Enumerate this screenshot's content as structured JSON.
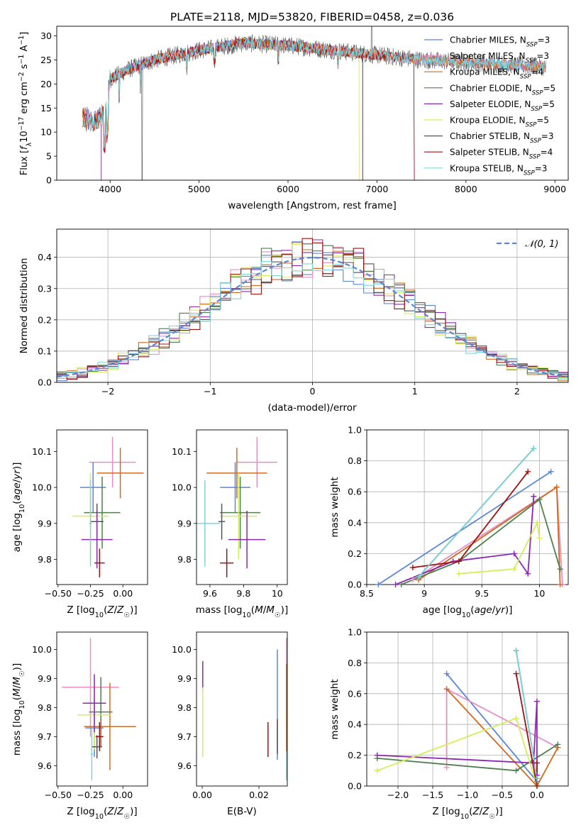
{
  "colors": {
    "Chabrier MILES": "#5b86d6",
    "Salpeter MILES": "#e68fc4",
    "Kroupa MILES": "#d2691e",
    "Chabrier ELODIE": "#4f7f4f",
    "Salpeter ELODIE": "#8b28b0",
    "Kroupa ELODIE": "#d4ee5a",
    "Chabrier STELIB": "#555555",
    "Salpeter STELIB": "#a01010",
    "Kroupa STELIB": "#7bd6da",
    "gaussian": "#5b86d6"
  },
  "chart_data": [
    {
      "id": "spectrum",
      "type": "line",
      "title": "PLATE=2118, MJD=53820, FIBERID=0458, z=0.036",
      "xlabel": "wavelength [Angstrom, rest frame]",
      "ylabel": "Flux [f_λ10^-17 erg cm^-2 s^-1 A^-1]",
      "xlim": [
        3400,
        9150
      ],
      "ylim": [
        0,
        32
      ],
      "xticks": [
        4000,
        5000,
        6000,
        7000,
        8000,
        9000
      ],
      "yticks": [
        0,
        5,
        10,
        15,
        20,
        25,
        30
      ],
      "legend_position": "top-right",
      "legend": [
        {
          "model": "Chabrier MILES",
          "n": 3
        },
        {
          "model": "Salpeter MILES",
          "n": 3
        },
        {
          "model": "Kroupa MILES",
          "n": 4
        },
        {
          "model": "Chabrier ELODIE",
          "n": 5
        },
        {
          "model": "Salpeter ELODIE",
          "n": 5
        },
        {
          "model": "Kroupa ELODIE",
          "n": 5
        },
        {
          "model": "Chabrier STELIB",
          "n": 3
        },
        {
          "model": "Salpeter STELIB",
          "n": 4
        },
        {
          "model": "Kroupa STELIB",
          "n": 3
        }
      ],
      "continuum": {
        "x": [
          3690,
          3800,
          3950,
          4000,
          4200,
          4500,
          5000,
          5500,
          6000,
          6500,
          7000,
          7500,
          8000,
          8500,
          8900
        ],
        "y": [
          13,
          12,
          14,
          21,
          23,
          25,
          27,
          28.5,
          28,
          27,
          26,
          25,
          24.5,
          24,
          23.5
        ]
      },
      "features": {
        "sharp_drop_x": 4360,
        "kroupa_elodie_end_x": 6800,
        "salpeter_stelib_end_x": 7420,
        "elodie_start_x": 3900,
        "spike_x": 6940,
        "model_end_x": 8900
      }
    },
    {
      "id": "residuals",
      "type": "histogram",
      "xlabel": "(data-model)/error",
      "ylabel": "Normed distribution",
      "xlim": [
        -2.5,
        2.5
      ],
      "ylim": [
        0,
        0.49
      ],
      "xticks": [
        -2,
        -1,
        0,
        1,
        2
      ],
      "yticks": [
        0.0,
        0.1,
        0.2,
        0.3,
        0.4
      ],
      "bin_width": 0.1,
      "legend": "𝒩(0, 1)",
      "legend_position": "top-right"
    },
    {
      "id": "age_vs_Z",
      "type": "errorbar",
      "xlabel": "Z [log10(Z/Z☉)]",
      "ylabel": "age  [log10(age/yr)]",
      "xlim": [
        -0.51,
        0.19
      ],
      "ylim": [
        9.73,
        10.16
      ],
      "xticks": [
        -0.5,
        -0.25,
        0.0
      ],
      "xticklabels": [
        "−0.50",
        "−0.25",
        "0.00"
      ],
      "yticks": [
        9.8,
        9.9,
        10.0,
        10.1
      ],
      "points": [
        {
          "model": "Salpeter MILES",
          "x": -0.08,
          "xerr": 0.18,
          "y": 10.07,
          "yerr": 0.07
        },
        {
          "model": "Kroupa MILES",
          "x": -0.02,
          "xerr": 0.18,
          "y": 10.04,
          "yerr": 0.07
        },
        {
          "model": "Chabrier MILES",
          "x": -0.23,
          "xerr": 0.1,
          "y": 10.0,
          "yerr": 0.07
        },
        {
          "model": "Chabrier ELODIE",
          "x": -0.16,
          "xerr": 0.14,
          "y": 9.93,
          "yerr": 0.1
        },
        {
          "model": "Kroupa ELODIE",
          "x": -0.25,
          "xerr": 0.14,
          "y": 9.92,
          "yerr": 0.12
        },
        {
          "model": "Chabrier STELIB",
          "x": -0.2,
          "xerr": 0.05,
          "y": 9.905,
          "yerr": 0.05
        },
        {
          "model": "Salpeter ELODIE",
          "x": -0.2,
          "xerr": 0.12,
          "y": 9.855,
          "yerr": 0.08
        },
        {
          "model": "Salpeter STELIB",
          "x": -0.18,
          "xerr": 0.04,
          "y": 9.79,
          "yerr": 0.04
        },
        {
          "model": "Kroupa STELIB",
          "x": -0.25,
          "xerr": 0.01,
          "y": 9.9,
          "yerr": 0.12
        }
      ]
    },
    {
      "id": "age_vs_mass",
      "type": "errorbar",
      "xlabel": "mass [log10(M/M☉)]",
      "xlim": [
        9.52,
        10.06
      ],
      "ylim": [
        9.73,
        10.16
      ],
      "xticks": [
        9.6,
        9.8,
        10.0
      ],
      "yticks": [
        9.8,
        9.9,
        10.0,
        10.1
      ],
      "points": [
        {
          "model": "Salpeter MILES",
          "x": 9.88,
          "xerr": 0.12,
          "y": 10.07,
          "yerr": 0.07
        },
        {
          "model": "Kroupa MILES",
          "x": 9.76,
          "xerr": 0.18,
          "y": 10.04,
          "yerr": 0.07
        },
        {
          "model": "Chabrier MILES",
          "x": 9.75,
          "xerr": 0.09,
          "y": 10.0,
          "yerr": 0.07
        },
        {
          "model": "Chabrier ELODIE",
          "x": 9.78,
          "xerr": 0.12,
          "y": 9.93,
          "yerr": 0.1
        },
        {
          "model": "Kroupa ELODIE",
          "x": 9.77,
          "xerr": 0.11,
          "y": 9.92,
          "yerr": 0.12
        },
        {
          "model": "Chabrier STELIB",
          "x": 9.67,
          "xerr": 0.02,
          "y": 9.905,
          "yerr": 0.05
        },
        {
          "model": "Salpeter ELODIE",
          "x": 9.82,
          "xerr": 0.11,
          "y": 9.855,
          "yerr": 0.08
        },
        {
          "model": "Salpeter STELIB",
          "x": 9.7,
          "xerr": 0.04,
          "y": 9.79,
          "yerr": 0.04
        },
        {
          "model": "Kroupa STELIB",
          "x": 9.57,
          "xerr": 0.09,
          "y": 9.9,
          "yerr": 0.12
        }
      ]
    },
    {
      "id": "mass_vs_Z",
      "type": "errorbar",
      "xlabel": "Z [log10(Z/Z☉)]",
      "ylabel": "mass [log10(M/M☉)]",
      "xlim": [
        -0.51,
        0.19
      ],
      "ylim": [
        9.53,
        10.06
      ],
      "xticks": [
        -0.5,
        -0.25,
        0.0
      ],
      "xticklabels": [
        "−0.50",
        "−0.25",
        "0.00"
      ],
      "yticks": [
        9.6,
        9.7,
        9.8,
        9.9,
        10.0
      ],
      "points": [
        {
          "model": "Salpeter MILES",
          "x": -0.25,
          "xerr": 0.22,
          "y": 9.87,
          "yerr": 0.17
        },
        {
          "model": "Kroupa MILES",
          "x": -0.1,
          "xerr": 0.2,
          "y": 9.735,
          "yerr": 0.15
        },
        {
          "model": "Chabrier MILES",
          "x": -0.22,
          "xerr": 0.07,
          "y": 9.73,
          "yerr": 0.1
        },
        {
          "model": "Chabrier ELODIE",
          "x": -0.17,
          "xerr": 0.09,
          "y": 9.785,
          "yerr": 0.12
        },
        {
          "model": "Kroupa ELODIE",
          "x": -0.22,
          "xerr": 0.13,
          "y": 9.775,
          "yerr": 0.12
        },
        {
          "model": "Salpeter ELODIE",
          "x": -0.22,
          "xerr": 0.09,
          "y": 9.815,
          "yerr": 0.1
        },
        {
          "model": "Chabrier STELIB",
          "x": -0.2,
          "xerr": 0.04,
          "y": 9.665,
          "yerr": 0.04
        },
        {
          "model": "Salpeter STELIB",
          "x": -0.18,
          "xerr": 0.03,
          "y": 9.7,
          "yerr": 0.05
        },
        {
          "model": "Kroupa STELIB",
          "x": -0.24,
          "xerr": 0.01,
          "y": 9.64,
          "yerr": 0.09
        }
      ]
    },
    {
      "id": "mass_vs_ebv",
      "type": "errorbar",
      "xlabel": "E(B-V)",
      "xlim": [
        -0.002,
        0.03
      ],
      "ylim": [
        9.53,
        10.06
      ],
      "xticks": [
        0.0,
        0.02
      ],
      "xticklabels": [
        "0.00",
        "0.02"
      ],
      "yticks": [
        9.6,
        9.7,
        9.8,
        9.9,
        10.0
      ],
      "points": [
        {
          "model": "Salpeter MILES",
          "x": 0.0297,
          "xerr": 0,
          "y": 9.87,
          "yerr": 0.17
        },
        {
          "model": "Kroupa MILES",
          "x": 0.0297,
          "xerr": 0,
          "y": 9.75,
          "yerr": 0.2
        },
        {
          "model": "Chabrier MILES",
          "x": 0.0265,
          "xerr": 0,
          "y": 9.81,
          "yerr": 0.19
        },
        {
          "model": "Salpeter ELODIE",
          "x": 0.0002,
          "xerr": 0,
          "y": 9.91,
          "yerr": 0.05
        },
        {
          "model": "Kroupa ELODIE",
          "x": 0.0002,
          "xerr": 0,
          "y": 9.75,
          "yerr": 0.12
        },
        {
          "model": "Salpeter STELIB",
          "x": 0.0232,
          "xerr": 0,
          "y": 9.69,
          "yerr": 0.06
        },
        {
          "model": "Chabrier STELIB",
          "x": 0.0265,
          "xerr": 0,
          "y": 9.7,
          "yerr": 0.06
        },
        {
          "model": "Kroupa STELIB",
          "x": 0.0297,
          "xerr": 0,
          "y": 9.6,
          "yerr": 0.05
        }
      ]
    },
    {
      "id": "weight_vs_age",
      "type": "line",
      "xlabel": "age  [log10(age/yr)]",
      "ylabel": "mass weight",
      "xlim": [
        8.5,
        10.25
      ],
      "ylim": [
        0.0,
        1.0
      ],
      "xticks": [
        8.5,
        9.0,
        9.5,
        10.0
      ],
      "yticks": [
        0.0,
        0.2,
        0.4,
        0.6,
        0.8,
        1.0
      ],
      "series": [
        {
          "model": "Chabrier MILES",
          "x": [
            8.6,
            10.1
          ],
          "y": [
            0.0,
            0.73
          ]
        },
        {
          "model": "Salpeter MILES",
          "x": [
            8.9,
            10.15,
            10.2
          ],
          "y": [
            0.03,
            0.63,
            0.0
          ]
        },
        {
          "model": "Kroupa MILES",
          "x": [
            8.95,
            10.15,
            10.18
          ],
          "y": [
            0.03,
            0.63,
            0.0
          ]
        },
        {
          "model": "Chabrier ELODIE",
          "x": [
            8.8,
            9.3,
            10.0,
            10.18
          ],
          "y": [
            0.0,
            0.15,
            0.55,
            0.1
          ]
        },
        {
          "model": "Salpeter ELODIE",
          "x": [
            8.75,
            9.25,
            9.78,
            9.9,
            9.95
          ],
          "y": [
            0.0,
            0.15,
            0.2,
            0.07,
            0.57
          ]
        },
        {
          "model": "Kroupa ELODIE",
          "x": [
            9.3,
            9.78,
            9.98,
            10.0
          ],
          "y": [
            0.07,
            0.1,
            0.4,
            0.3
          ]
        },
        {
          "model": "Chabrier STELIB",
          "x": [
            8.95,
            9.95
          ],
          "y": [
            0.05,
            0.88
          ]
        },
        {
          "model": "Salpeter STELIB",
          "x": [
            8.9,
            9.3,
            9.9
          ],
          "y": [
            0.11,
            0.15,
            0.73
          ]
        },
        {
          "model": "Kroupa STELIB",
          "x": [
            8.95,
            9.95
          ],
          "y": [
            0.05,
            0.88
          ]
        }
      ]
    },
    {
      "id": "weight_vs_Z",
      "type": "line",
      "xlabel": "Z [log10(Z/Z☉)]",
      "ylabel": "mass weight",
      "xlim": [
        -2.45,
        0.45
      ],
      "ylim": [
        0.0,
        1.0
      ],
      "xticks": [
        -2.0,
        -1.5,
        -1.0,
        -0.5,
        0.0
      ],
      "xticklabels": [
        "−2.0",
        "−1.5",
        "−1.0",
        "−0.5",
        "0.0"
      ],
      "yticks": [
        0.0,
        0.2,
        0.4,
        0.6,
        0.8,
        1.0
      ],
      "series": [
        {
          "model": "Chabrier MILES",
          "x": [
            -1.3,
            0.0
          ],
          "y": [
            0.73,
            0.03
          ]
        },
        {
          "model": "Salpeter MILES",
          "x": [
            -1.3,
            -1.3,
            0.3
          ],
          "y": [
            0.12,
            0.63,
            0.25
          ]
        },
        {
          "model": "Kroupa MILES",
          "x": [
            -1.3,
            0.0,
            0.3
          ],
          "y": [
            0.63,
            0.0,
            0.25
          ]
        },
        {
          "model": "Chabrier ELODIE",
          "x": [
            -2.3,
            -0.3,
            0.3
          ],
          "y": [
            0.18,
            0.1,
            0.27
          ]
        },
        {
          "model": "Salpeter ELODIE",
          "x": [
            -2.3,
            -0.05,
            0.0,
            0.0
          ],
          "y": [
            0.2,
            0.15,
            0.55,
            0.07
          ]
        },
        {
          "model": "Kroupa ELODIE",
          "x": [
            -2.3,
            -0.3,
            0.0
          ],
          "y": [
            0.1,
            0.44,
            0.0
          ]
        },
        {
          "model": "Chabrier STELIB",
          "x": [
            -0.3,
            0.0
          ],
          "y": [
            0.88,
            0.05
          ]
        },
        {
          "model": "Salpeter STELIB",
          "x": [
            -0.3,
            0.0,
            0.0
          ],
          "y": [
            0.73,
            0.0,
            0.15
          ]
        },
        {
          "model": "Kroupa STELIB",
          "x": [
            -0.3,
            0.0
          ],
          "y": [
            0.88,
            0.05
          ]
        }
      ]
    }
  ]
}
